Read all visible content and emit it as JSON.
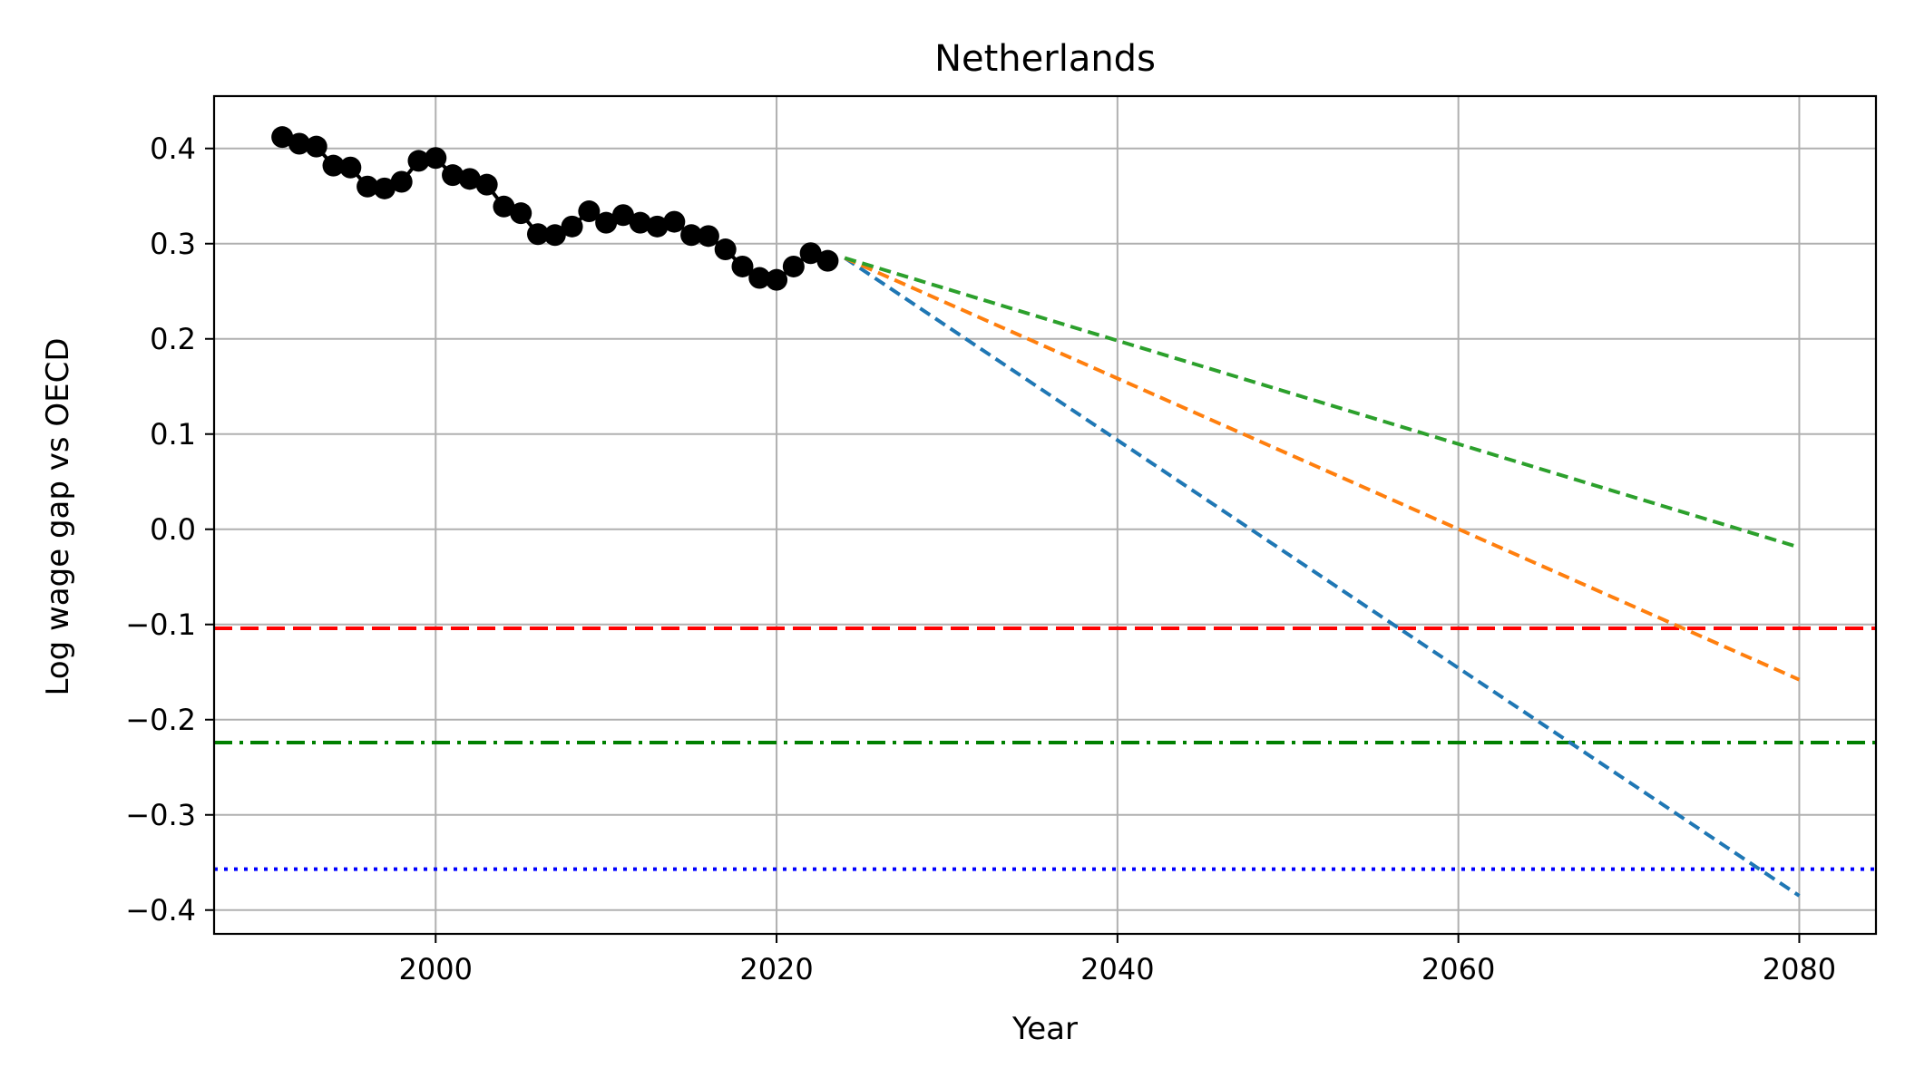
{
  "chart_data": {
    "type": "line",
    "title": "Netherlands",
    "xlabel": "Year",
    "ylabel": "Log wage gap vs OECD",
    "xlim": [
      1987,
      2084.5
    ],
    "ylim": [
      -0.425,
      0.455
    ],
    "grid": true,
    "x_ticks": [
      2000,
      2020,
      2040,
      2060,
      2080
    ],
    "x_tick_labels": [
      "2000",
      "2020",
      "2040",
      "2060",
      "2080"
    ],
    "y_ticks": [
      0.4,
      0.3,
      0.2,
      0.1,
      0.0,
      -0.1,
      -0.2,
      -0.3,
      -0.4
    ],
    "y_tick_labels": [
      "0.4",
      "0.3",
      "0.2",
      "0.1",
      "0.0",
      "−0.1",
      "−0.2",
      "−0.3",
      "−0.4"
    ],
    "historical": {
      "color": "#000000",
      "x": [
        1991,
        1992,
        1993,
        1994,
        1995,
        1996,
        1997,
        1998,
        1999,
        2000,
        2001,
        2002,
        2003,
        2004,
        2005,
        2006,
        2007,
        2008,
        2009,
        2010,
        2011,
        2012,
        2013,
        2014,
        2015,
        2016,
        2017,
        2018,
        2019,
        2020,
        2021,
        2022,
        2023
      ],
      "y": [
        0.412,
        0.405,
        0.402,
        0.382,
        0.38,
        0.36,
        0.358,
        0.365,
        0.387,
        0.39,
        0.372,
        0.368,
        0.362,
        0.339,
        0.332,
        0.31,
        0.309,
        0.318,
        0.334,
        0.322,
        0.33,
        0.322,
        0.318,
        0.323,
        0.309,
        0.308,
        0.294,
        0.276,
        0.264,
        0.262,
        0.276,
        0.29,
        0.282
      ]
    },
    "projections": [
      {
        "color": "#1f77b4",
        "x": [
          2024,
          2080
        ],
        "y": [
          0.285,
          -0.385
        ]
      },
      {
        "color": "#ff7f0e",
        "x": [
          2024,
          2080
        ],
        "y": [
          0.285,
          -0.158
        ]
      },
      {
        "color": "#2ca02c",
        "x": [
          2024,
          2080
        ],
        "y": [
          0.285,
          -0.019
        ]
      }
    ],
    "reference_lines": [
      {
        "y": -0.104,
        "color": "#ff0000",
        "style": "dashed"
      },
      {
        "y": -0.224,
        "color": "#008000",
        "style": "dashdot"
      },
      {
        "y": -0.357,
        "color": "#0000ff",
        "style": "dotted"
      }
    ]
  }
}
